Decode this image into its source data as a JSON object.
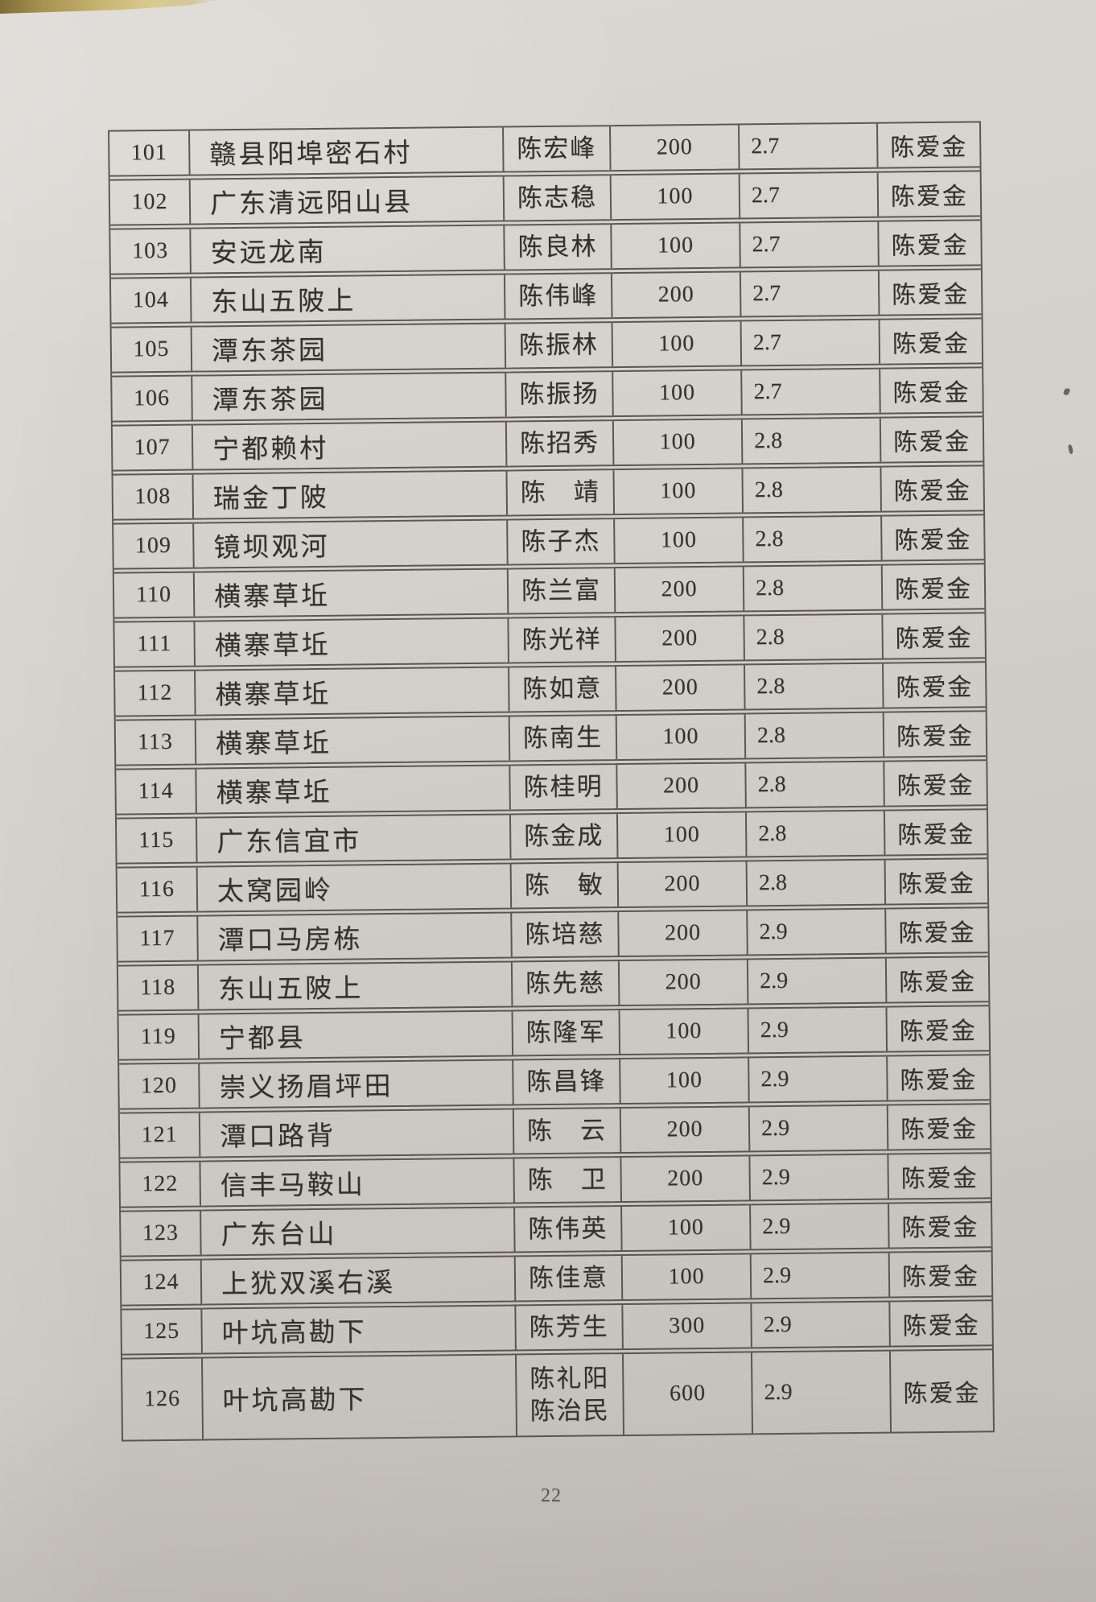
{
  "document": {
    "page_number": "22"
  },
  "table": {
    "rows": [
      {
        "no": "101",
        "place": "赣县阳埠密石村",
        "name": "陈宏峰",
        "amount": "200",
        "rate": "2.7",
        "payer": "陈爱金"
      },
      {
        "no": "102",
        "place": "广东清远阳山县",
        "name": "陈志稳",
        "amount": "100",
        "rate": "2.7",
        "payer": "陈爱金"
      },
      {
        "no": "103",
        "place": "安远龙南",
        "name": "陈良林",
        "amount": "100",
        "rate": "2.7",
        "payer": "陈爱金"
      },
      {
        "no": "104",
        "place": "东山五陂上",
        "name": "陈伟峰",
        "amount": "200",
        "rate": "2.7",
        "payer": "陈爱金"
      },
      {
        "no": "105",
        "place": "潭东茶园",
        "name": "陈振林",
        "amount": "100",
        "rate": "2.7",
        "payer": "陈爱金"
      },
      {
        "no": "106",
        "place": "潭东茶园",
        "name": "陈振扬",
        "amount": "100",
        "rate": "2.7",
        "payer": "陈爱金"
      },
      {
        "no": "107",
        "place": "宁都赖村",
        "name": "陈招秀",
        "amount": "100",
        "rate": "2.8",
        "payer": "陈爱金"
      },
      {
        "no": "108",
        "place": "瑞金丁陂",
        "name": "陈　靖",
        "amount": "100",
        "rate": "2.8",
        "payer": "陈爱金"
      },
      {
        "no": "109",
        "place": "镜坝观河",
        "name": "陈子杰",
        "amount": "100",
        "rate": "2.8",
        "payer": "陈爱金"
      },
      {
        "no": "110",
        "place": "横寨草坵",
        "name": "陈兰富",
        "amount": "200",
        "rate": "2.8",
        "payer": "陈爱金"
      },
      {
        "no": "111",
        "place": "横寨草坵",
        "name": "陈光祥",
        "amount": "200",
        "rate": "2.8",
        "payer": "陈爱金"
      },
      {
        "no": "112",
        "place": "横寨草坵",
        "name": "陈如意",
        "amount": "200",
        "rate": "2.8",
        "payer": "陈爱金"
      },
      {
        "no": "113",
        "place": "横寨草坵",
        "name": "陈南生",
        "amount": "100",
        "rate": "2.8",
        "payer": "陈爱金"
      },
      {
        "no": "114",
        "place": "横寨草坵",
        "name": "陈桂明",
        "amount": "200",
        "rate": "2.8",
        "payer": "陈爱金"
      },
      {
        "no": "115",
        "place": "广东信宜市",
        "name": "陈金成",
        "amount": "100",
        "rate": "2.8",
        "payer": "陈爱金"
      },
      {
        "no": "116",
        "place": "太窝园岭",
        "name": "陈　敏",
        "amount": "200",
        "rate": "2.8",
        "payer": "陈爱金"
      },
      {
        "no": "117",
        "place": "潭口马房栋",
        "name": "陈培慈",
        "amount": "200",
        "rate": "2.9",
        "payer": "陈爱金"
      },
      {
        "no": "118",
        "place": "东山五陂上",
        "name": "陈先慈",
        "amount": "200",
        "rate": "2.9",
        "payer": "陈爱金"
      },
      {
        "no": "119",
        "place": "宁都县",
        "name": "陈隆军",
        "amount": "100",
        "rate": "2.9",
        "payer": "陈爱金"
      },
      {
        "no": "120",
        "place": "崇义扬眉坪田",
        "name": "陈昌锋",
        "amount": "100",
        "rate": "2.9",
        "payer": "陈爱金"
      },
      {
        "no": "121",
        "place": "潭口路背",
        "name": "陈　云",
        "amount": "200",
        "rate": "2.9",
        "payer": "陈爱金"
      },
      {
        "no": "122",
        "place": "信丰马鞍山",
        "name": "陈　卫",
        "amount": "200",
        "rate": "2.9",
        "payer": "陈爱金"
      },
      {
        "no": "123",
        "place": "广东台山",
        "name": "陈伟英",
        "amount": "100",
        "rate": "2.9",
        "payer": "陈爱金"
      },
      {
        "no": "124",
        "place": "上犹双溪右溪",
        "name": "陈佳意",
        "amount": "100",
        "rate": "2.9",
        "payer": "陈爱金"
      },
      {
        "no": "125",
        "place": "叶坑高勘下",
        "name": "陈芳生",
        "amount": "300",
        "rate": "2.9",
        "payer": "陈爱金"
      },
      {
        "no": "126",
        "place": "叶坑高勘下",
        "name": "陈礼阳\n陈治民",
        "amount": "600",
        "rate": "2.9",
        "payer": "陈爱金"
      }
    ]
  }
}
